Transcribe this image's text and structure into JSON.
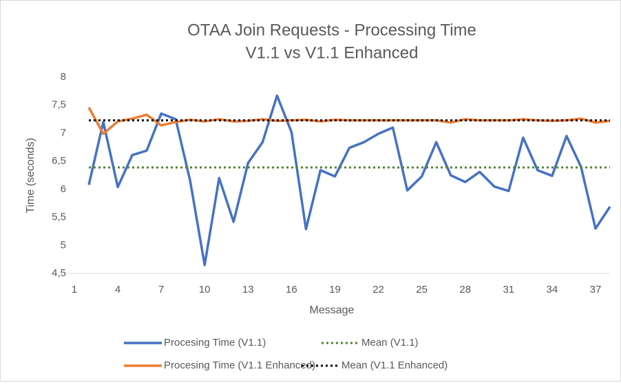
{
  "chart_data": {
    "type": "line",
    "title": "OTAA Join Requests - Processing Time",
    "subtitle": "V1.1 vs V1.1 Enhanced",
    "x_label": "Message",
    "y_label": "Time (seconds)",
    "xlim": [
      1,
      38
    ],
    "xticks": [
      1,
      4,
      7,
      10,
      13,
      16,
      19,
      22,
      25,
      28,
      31,
      34,
      37
    ],
    "ylim": [
      4.5,
      8
    ],
    "yticks": [
      {
        "value": 4.5,
        "label": "4,5"
      },
      5,
      {
        "value": 5.5,
        "label": "5,5"
      },
      6,
      {
        "value": 6.5,
        "label": "6,5"
      },
      7,
      {
        "value": 7.5,
        "label": "7,5"
      },
      8
    ],
    "grid": false,
    "legend": "bottom",
    "series": [
      {
        "name": "Procesing Time (V1.1)",
        "color": "#4472c4",
        "dash": "solid",
        "x": [
          2,
          3,
          4,
          5,
          6,
          7,
          8,
          9,
          10,
          11,
          12,
          13,
          14,
          15,
          16,
          17,
          18,
          19,
          20,
          21,
          22,
          23,
          24,
          25,
          26,
          27,
          28,
          29,
          30,
          31,
          32,
          33,
          34,
          35,
          36,
          37,
          38
        ],
        "values": [
          6.08,
          7.2,
          6.04,
          6.61,
          6.69,
          7.35,
          7.25,
          6.15,
          4.65,
          6.2,
          5.42,
          6.47,
          6.84,
          7.67,
          7.02,
          5.29,
          6.34,
          6.23,
          6.74,
          6.84,
          6.99,
          7.1,
          5.98,
          6.23,
          6.84,
          6.25,
          6.13,
          6.31,
          6.05,
          5.97,
          6.92,
          6.34,
          6.24,
          6.95,
          6.4,
          5.3,
          5.69
        ]
      },
      {
        "name": "Mean (V1.1)",
        "color": "#548235",
        "dash": "dot",
        "x": [
          2,
          38
        ],
        "values": [
          6.39,
          6.39
        ]
      },
      {
        "name": "Procesing Time (V1.1 Enhanced)",
        "color": "#ed7d31",
        "dash": "solid",
        "x": [
          2,
          3,
          4,
          5,
          6,
          7,
          8,
          9,
          10,
          11,
          12,
          13,
          14,
          15,
          16,
          17,
          18,
          19,
          20,
          21,
          22,
          23,
          24,
          25,
          26,
          27,
          28,
          29,
          30,
          31,
          32,
          33,
          34,
          35,
          36,
          37,
          38
        ],
        "values": [
          7.46,
          6.99,
          7.21,
          7.26,
          7.33,
          7.14,
          7.2,
          7.24,
          7.21,
          7.25,
          7.21,
          7.22,
          7.25,
          7.22,
          7.23,
          7.24,
          7.21,
          7.24,
          7.23,
          7.23,
          7.23,
          7.23,
          7.23,
          7.23,
          7.23,
          7.19,
          7.25,
          7.23,
          7.23,
          7.23,
          7.25,
          7.23,
          7.22,
          7.23,
          7.26,
          7.19,
          7.22
        ]
      },
      {
        "name": "Mean (V1.1 Enhanced)",
        "color": "#000000",
        "dash": "dot",
        "x": [
          2,
          38
        ],
        "values": [
          7.23,
          7.23
        ]
      }
    ]
  }
}
